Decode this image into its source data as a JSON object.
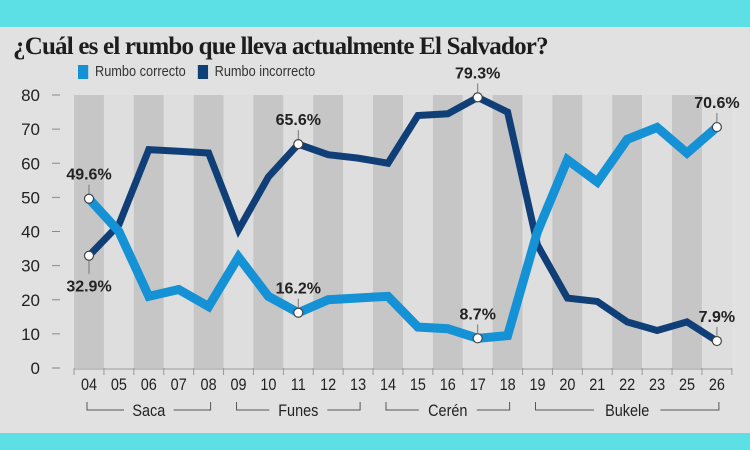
{
  "title": "¿Cuál es el rumbo que lleva actualmente El Salvador?",
  "colors": {
    "correcto": "#1591d6",
    "incorrecto": "#103f78",
    "band_dark": "#c6c6c6",
    "band_light": "#dedede",
    "background": "#e1e1e1",
    "frame": "#5ce0e6"
  },
  "legend": [
    {
      "label": "Rumbo correcto",
      "color": "#1591d6"
    },
    {
      "label": "Rumbo incorrecto",
      "color": "#103f78"
    }
  ],
  "chart_data": {
    "type": "line",
    "title": "¿Cuál es el rumbo que lleva actualmente El Salvador?",
    "xlabel": "",
    "ylabel": "",
    "x": [
      "04",
      "05",
      "06",
      "07",
      "08",
      "09",
      "10",
      "11",
      "12",
      "13",
      "14",
      "15",
      "16",
      "17",
      "18",
      "19",
      "20",
      "21",
      "22",
      "23",
      "25",
      "26"
    ],
    "yticks": [
      0,
      10,
      20,
      30,
      40,
      50,
      60,
      70,
      80
    ],
    "ylim": [
      0,
      80
    ],
    "grid": false,
    "legend_position": "top-left",
    "series": [
      {
        "name": "Rumbo correcto",
        "values": [
          49.6,
          40,
          21,
          23,
          18,
          32.5,
          21,
          16.2,
          20,
          20.5,
          21,
          12,
          11.5,
          8.7,
          9.5,
          40,
          61,
          54.5,
          67,
          70.5,
          63,
          70.6
        ]
      },
      {
        "name": "Rumbo incorrecto",
        "values": [
          32.9,
          42,
          64,
          63.5,
          63,
          40.5,
          56,
          65.6,
          62.5,
          61.5,
          60,
          74,
          74.5,
          79.3,
          75,
          36,
          20.5,
          19.5,
          13.5,
          11,
          13.5,
          7.9
        ]
      }
    ],
    "annotations": [
      {
        "series": 0,
        "index": 0,
        "text": "49.6%",
        "pos": "above"
      },
      {
        "series": 1,
        "index": 0,
        "text": "32.9%",
        "pos": "below"
      },
      {
        "series": 1,
        "index": 7,
        "text": "65.6%",
        "pos": "above"
      },
      {
        "series": 0,
        "index": 7,
        "text": "16.2%",
        "pos": "above"
      },
      {
        "series": 1,
        "index": 13,
        "text": "79.3%",
        "pos": "above"
      },
      {
        "series": 0,
        "index": 13,
        "text": "8.7%",
        "pos": "above"
      },
      {
        "series": 0,
        "index": 21,
        "text": "70.6%",
        "pos": "above"
      },
      {
        "series": 1,
        "index": 21,
        "text": "7.9%",
        "pos": "above"
      }
    ],
    "eras": [
      {
        "label": "Saca",
        "from": 0,
        "to": 4
      },
      {
        "label": "Funes",
        "from": 5,
        "to": 9
      },
      {
        "label": "Cerén",
        "from": 10,
        "to": 14
      },
      {
        "label": "Bukele",
        "from": 15,
        "to": 21
      }
    ]
  }
}
